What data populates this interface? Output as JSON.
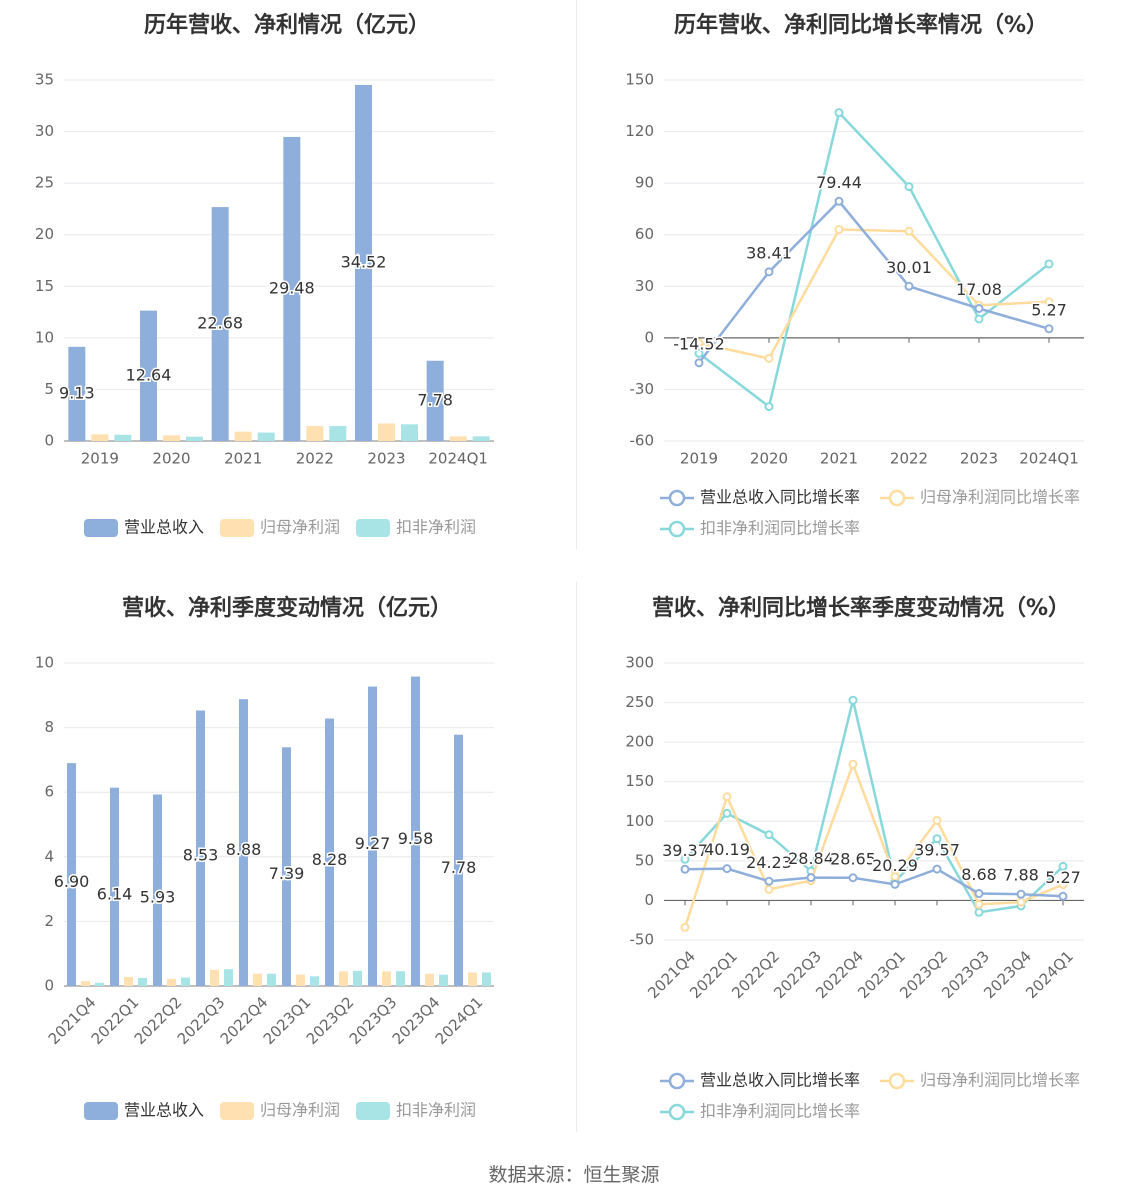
{
  "colors": {
    "revenue": "#8eaedb",
    "parent_profit": "#ffe0b0",
    "deducted_profit": "#a8e4e6",
    "revenue_line": "#8eaedb",
    "parent_line": "#ffdb9c",
    "deducted_line": "#86d8db",
    "axis": "#999999",
    "grid": "#e8e8ee",
    "zero_line": "#666666"
  },
  "source": "数据来源：恒生聚源",
  "chart_data": [
    {
      "type": "bar",
      "title": "历年营收、净利情况（亿元）",
      "categories": [
        "2019",
        "2020",
        "2021",
        "2022",
        "2023",
        "2024Q1"
      ],
      "ylim": [
        0,
        35
      ],
      "yticks": [
        0,
        5,
        10,
        15,
        20,
        25,
        30,
        35
      ],
      "series": [
        {
          "name": "营业总收入",
          "values": [
            9.13,
            12.64,
            22.68,
            29.48,
            34.52,
            7.78
          ],
          "labels": [
            "9.13",
            "12.64",
            "22.68",
            "29.48",
            "34.52",
            "7.78"
          ]
        },
        {
          "name": "归母净利润",
          "values": [
            0.65,
            0.55,
            0.9,
            1.45,
            1.7,
            0.45
          ]
        },
        {
          "name": "扣非净利润",
          "values": [
            0.6,
            0.42,
            0.82,
            1.45,
            1.62,
            0.45
          ]
        }
      ]
    },
    {
      "type": "line",
      "title": "历年营收、净利同比增长率情况（%）",
      "categories": [
        "2019",
        "2020",
        "2021",
        "2022",
        "2023",
        "2024Q1"
      ],
      "ylim": [
        -60,
        150
      ],
      "yticks": [
        -60,
        -30,
        0,
        30,
        60,
        90,
        120,
        150
      ],
      "series": [
        {
          "name": "营业总收入同比增长率",
          "values": [
            -14.52,
            38.41,
            79.44,
            30.01,
            17.08,
            5.27
          ],
          "labels": [
            "-14.52",
            "38.41",
            "79.44",
            "30.01",
            "17.08",
            "5.27"
          ]
        },
        {
          "name": "归母净利润同比增长率",
          "values": [
            -3,
            -12,
            63,
            62,
            19,
            21
          ]
        },
        {
          "name": "扣非净利润同比增长率",
          "values": [
            -9,
            -40,
            131,
            88,
            11,
            43
          ]
        }
      ]
    },
    {
      "type": "bar",
      "title": "营收、净利季度变动情况（亿元）",
      "categories": [
        "2021Q4",
        "2022Q1",
        "2022Q2",
        "2022Q3",
        "2022Q4",
        "2023Q1",
        "2023Q2",
        "2023Q3",
        "2023Q4",
        "2024Q1"
      ],
      "ylim": [
        0,
        10
      ],
      "yticks": [
        0,
        2,
        4,
        6,
        8,
        10
      ],
      "series": [
        {
          "name": "营业总收入",
          "values": [
            6.9,
            6.14,
            5.93,
            8.53,
            8.88,
            7.39,
            8.28,
            9.27,
            9.58,
            7.78
          ],
          "labels": [
            "6.90",
            "6.14",
            "5.93",
            "8.53",
            "8.88",
            "7.39",
            "8.28",
            "9.27",
            "9.58",
            "7.78"
          ]
        },
        {
          "name": "归母净利润",
          "values": [
            0.15,
            0.28,
            0.22,
            0.5,
            0.38,
            0.35,
            0.45,
            0.45,
            0.38,
            0.42
          ]
        },
        {
          "name": "扣非净利润",
          "values": [
            0.1,
            0.25,
            0.26,
            0.52,
            0.38,
            0.3,
            0.47,
            0.46,
            0.35,
            0.42
          ]
        }
      ]
    },
    {
      "type": "line",
      "title": "营收、净利同比增长率季度变动情况（%）",
      "categories": [
        "2021Q4",
        "2022Q1",
        "2022Q2",
        "2022Q3",
        "2022Q4",
        "2023Q1",
        "2023Q2",
        "2023Q3",
        "2023Q4",
        "2024Q1"
      ],
      "ylim": [
        -50,
        300
      ],
      "yticks": [
        -50,
        0,
        50,
        100,
        150,
        200,
        250,
        300
      ],
      "series": [
        {
          "name": "营业总收入同比增长率",
          "values": [
            39.37,
            40.19,
            24.23,
            28.84,
            28.65,
            20.29,
            39.57,
            8.68,
            7.88,
            5.27
          ],
          "labels": [
            "39.37",
            "40.19",
            "24.23",
            "28.84",
            "28.65",
            "20.29",
            "39.57",
            "8.68",
            "7.88",
            "5.27"
          ]
        },
        {
          "name": "归母净利润同比增长率",
          "values": [
            -34,
            131,
            14,
            25,
            172,
            30,
            101,
            -5,
            -2,
            20
          ]
        },
        {
          "name": "扣非净利润同比增长率",
          "values": [
            52,
            110,
            83,
            37,
            253,
            24,
            78,
            -15,
            -7,
            43
          ]
        }
      ]
    }
  ]
}
